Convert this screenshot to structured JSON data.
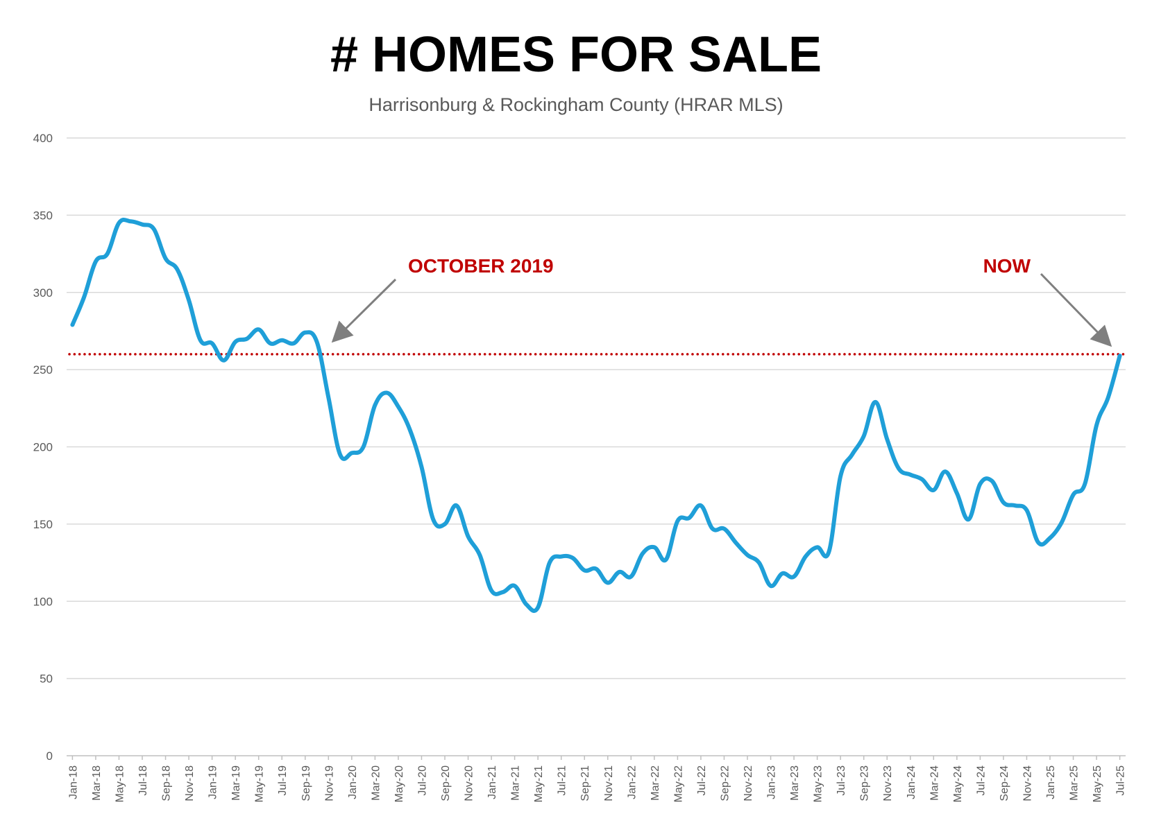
{
  "chart_data": {
    "type": "line",
    "title": "# HOMES FOR SALE",
    "subtitle": "Harrisonburg & Rockingham County (HRAR MLS)",
    "xlabel": "",
    "ylabel": "",
    "ylim": [
      0,
      400
    ],
    "yticks": [
      0,
      50,
      100,
      150,
      200,
      250,
      300,
      350,
      400
    ],
    "grid": true,
    "x_tick_labels": [
      "Jan-18",
      "Mar-18",
      "May-18",
      "Jul-18",
      "Sep-18",
      "Nov-18",
      "Jan-19",
      "Mar-19",
      "May-19",
      "Jul-19",
      "Sep-19",
      "Nov-19",
      "Jan-20",
      "Mar-20",
      "May-20",
      "Jul-20",
      "Sep-20",
      "Nov-20",
      "Jan-21",
      "Mar-21",
      "May-21",
      "Jul-21",
      "Sep-21",
      "Nov-21",
      "Jan-22",
      "Mar-22",
      "May-22",
      "Jul-22",
      "Sep-22",
      "Nov-22",
      "Jan-23",
      "Mar-23",
      "May-23",
      "Jul-23",
      "Sep-23",
      "Nov-23",
      "Jan-24",
      "Mar-24",
      "May-24",
      "Jul-24",
      "Sep-24",
      "Nov-24",
      "Jan-25",
      "Mar-25",
      "May-25",
      "Jul-25"
    ],
    "series": [
      {
        "name": "Homes for Sale",
        "color": "#1f9fd8",
        "values": [
          279,
          297,
          320,
          325,
          345,
          346,
          344,
          341,
          322,
          315,
          295,
          269,
          267,
          256,
          268,
          270,
          276,
          267,
          269,
          267,
          274,
          268,
          232,
          195,
          196,
          200,
          227,
          235,
          226,
          211,
          187,
          153,
          150,
          162,
          142,
          130,
          107,
          106,
          110,
          98,
          96,
          125,
          129,
          128,
          120,
          121,
          112,
          119,
          116,
          131,
          135,
          127,
          152,
          154,
          162,
          147,
          147,
          138,
          130,
          125,
          110,
          118,
          116,
          129,
          135,
          132,
          181,
          195,
          207,
          229,
          205,
          186,
          182,
          179,
          172,
          184,
          170,
          153,
          176,
          178,
          164,
          162,
          159,
          138,
          141,
          151,
          169,
          176,
          214,
          232,
          259
        ]
      }
    ],
    "reference_line": {
      "value": 260,
      "color": "#c00000",
      "style": "dotted"
    },
    "annotations": [
      {
        "text": "OCTOBER 2019",
        "points_to": "Nov-19",
        "color": "#c00000"
      },
      {
        "text": "NOW",
        "points_to": "Jul-25",
        "color": "#c00000"
      }
    ],
    "arrow_color": "#7f7f7f",
    "grid_color": "#d9d9d9",
    "axis_color": "#bfbfbf"
  }
}
